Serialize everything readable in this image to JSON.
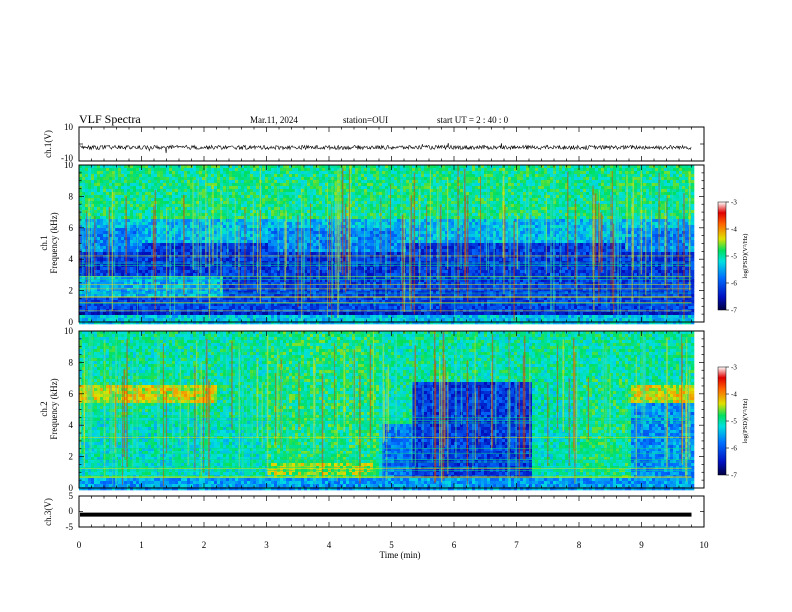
{
  "header": {
    "title": "VLF Spectra",
    "date": "Mar.11, 2024",
    "station": "station=OUI",
    "start_ut": "start UT =  2 : 40 : 0"
  },
  "chart_data": [
    {
      "type": "line",
      "ylabel": "ch.1(V)",
      "ylim": [
        -10,
        10
      ],
      "ytick_labels": [
        "10",
        "-10"
      ],
      "series": [
        {
          "description_level": -2,
          "noise_amplitude": 1.2
        }
      ]
    },
    {
      "type": "heatmap",
      "ylabel_lines": [
        "ch.1",
        "Frequency (kHz)"
      ],
      "ylim": [
        0,
        10
      ],
      "ytick_labels": [
        "0",
        "2",
        "4",
        "6",
        "8",
        "10"
      ],
      "colorbar": {
        "label": "log(PSD)(V²/Hz)",
        "range": [
          -7,
          -3
        ],
        "tick_labels": [
          "-3",
          "-4",
          "-5",
          "-6",
          "-7"
        ]
      }
    },
    {
      "type": "heatmap",
      "ylabel_lines": [
        "ch.2",
        "Frequency (kHz)"
      ],
      "ylim": [
        0,
        10
      ],
      "ytick_labels": [
        "0",
        "2",
        "4",
        "6",
        "8",
        "10"
      ],
      "colorbar": {
        "label": "log(PSD)(V²/Hz)",
        "range": [
          -7,
          -3
        ],
        "tick_labels": [
          "-3",
          "-4",
          "-5",
          "-6",
          "-7"
        ]
      }
    },
    {
      "type": "line",
      "ylabel": "ch.3(V)",
      "ylim": [
        -5,
        5
      ],
      "ytick_labels": [
        "5",
        "0",
        "-5"
      ],
      "series": [
        {
          "level": -1
        }
      ]
    }
  ],
  "xaxis": {
    "label": "Time (min)",
    "range": [
      0,
      10
    ],
    "tick_labels": [
      "0",
      "1",
      "2",
      "3",
      "4",
      "5",
      "6",
      "7",
      "8",
      "9",
      "10"
    ],
    "data_end": 9.8
  }
}
